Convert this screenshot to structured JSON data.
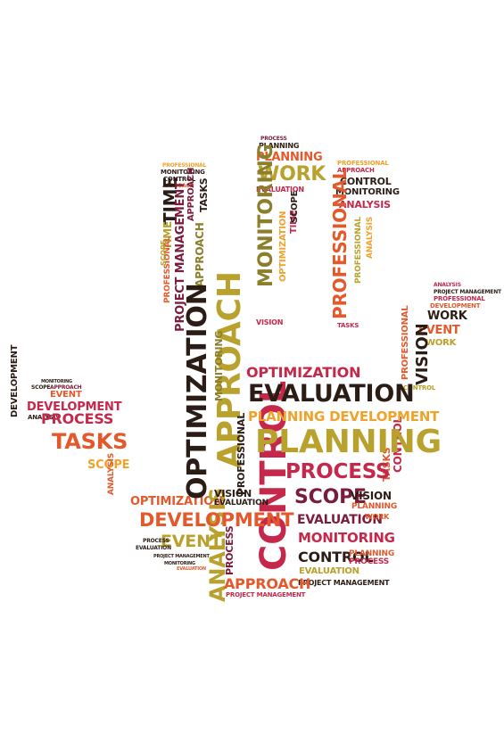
{
  "palette": {
    "dark": "#2b1d16",
    "wine": "#7a1d3a",
    "crimson": "#c5284a",
    "orange": "#e3592c",
    "amber": "#f0a22a",
    "olive": "#b8a12c",
    "khaki": "#8b7f2b",
    "brown": "#6a4a2a",
    "red": "#d64c3a",
    "background": "#ffffff"
  },
  "words": {
    "planning_big": "PLANNING",
    "control_big": "CONTROL",
    "evaluation_big": "EVALUATION",
    "approach_big": "APPROACH",
    "optimization_big": "OPTIMIZATION",
    "development_big": "DEVELOPMENT",
    "process_big": "PROCESS",
    "scope_big": "SCOPE",
    "monitoring_big": "MONITORING",
    "event_big": "EVENT",
    "analysis_big": "ANALYSIS",
    "tasks_big": "TASKS",
    "work_big": "WORK",
    "vision_big": "VISION",
    "time_big": "TIME",
    "professional_big": "PROFESSIONAL",
    "project_management": "PROJECT MANAGEMENT",
    "planning_dev": "PLANNING DEVELOPMENT",
    "monitoring_f": "MONITORING",
    "evaluation_s": "EVALUATION",
    "control_s": "CONTROL",
    "optimization_s": "OPTIMIZATION",
    "scope_s": "SCOPE",
    "approach_s": "APPROACH",
    "development_s": "DEVELOPMENT",
    "process_s": "PROCESS",
    "tasks_s": "TASKS",
    "vision_s": "VISION",
    "work_s": "WORK",
    "event_s": "EVENT",
    "analysis_s": "ANALYSIS",
    "planning_s": "PLANNING",
    "professional_s": "PROFESSIONAL",
    "time_s": "TIME",
    "monitoring_s": "MONITORING"
  }
}
